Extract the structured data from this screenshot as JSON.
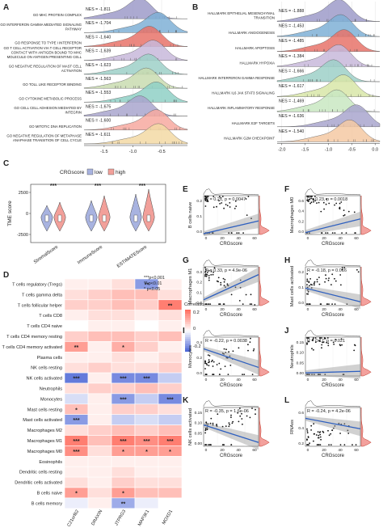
{
  "panel_letters": {
    "A": "A",
    "B": "B",
    "C": "C",
    "D": "D",
    "E": "E",
    "F": "F",
    "G": "G",
    "H": "H",
    "I": "I",
    "J": "J",
    "K": "K",
    "L": "L"
  },
  "chart_data": [
    {
      "panel": "A",
      "type": "ridge",
      "terms": [
        "GO MHC PROTEIN COMPLEX",
        "GO INTERFERON GAMMA MEDIATED SIGNALING PATHWAY",
        "GO RESPONSE TO TYPE I INTERFERON",
        "GO T CELL ACTIVATION VIA T CELL RECEPTOR CONTACT WITH ANTIGEN BOUND TO MHC MOLECULE ON ANTIGEN PRESENTING CELL",
        "GO NEGATIVE REGULATION OF MAST CELL ACTIVATION",
        "GO TOLL LIKE RECEPTOR BINDING",
        "GO CYTOKINE METABOLIC PROCESS",
        "GO CELL CELL ADHESION MEDIATED BY INTEGRIN",
        "GO MITOTIC DNA REPLICATION",
        "GO NEGATIVE REGULATION OF METAPHASE ANAPHASE TRANSITION OF CELL CYCLE"
      ],
      "nes_labels": [
        "NES = -1.811",
        "NES = -1.704",
        "NES = -1.640",
        "NES = -1.639",
        "NES = -1.623",
        "NES = -1.563",
        "NES = -1.553",
        "NES = -1.675",
        "NES = -1.600",
        "NES = -1.611"
      ],
      "x_ticks": [
        "-1.5",
        "-1.0",
        "-0.5"
      ],
      "colors": [
        "#9e9bc9",
        "#7fb0d6",
        "#e8736a",
        "#c8b8db",
        "#9dd0c8",
        "#c9dcb0",
        "#8fd0c6",
        "#a9a6ce",
        "#f7a9a0",
        "#f3d9a4"
      ]
    },
    {
      "panel": "B",
      "type": "ridge",
      "terms": [
        "HALLMARK EPITHELIAL MESENCHYMAL TRANSITION",
        "HALLMARK ANGIOGENESIS",
        "HALLMARK APOPTOSIS",
        "HALLMARK HYPOXIA",
        "HALLMARK INTERFERON GAMMA RESPONSE",
        "HALLMARK IL6 JAK STAT3 SIGNALING",
        "HALLMARK INFLAMMATORY RESPONSE",
        "HALLMARK E2F TARGETS",
        "HALLMARK G2M CHECKPOINT"
      ],
      "nes_labels": [
        "NES = -1.888",
        "NES = -1.453",
        "NES = -1.485",
        "NES = -1.384",
        "NES = -1.666",
        "NES = -1.617",
        "NES = -1.469",
        "NES = -1.636",
        "NES = -1.540"
      ],
      "x_ticks": [
        "-2.0",
        "-1.5",
        "-1.0",
        "-0.5",
        "0.0"
      ],
      "colors": [
        "#9e9bc9",
        "#7fb0d6",
        "#e8736a",
        "#c8b8db",
        "#9dd0c8",
        "#d8e6a8",
        "#c9e7c2",
        "#a9a6ce",
        "#f4c9a3"
      ]
    },
    {
      "panel": "C",
      "type": "violin",
      "title": "CRGscore",
      "legend": [
        "low",
        "high"
      ],
      "ylabel": "TME score",
      "y_ticks": [
        "2500",
        "0",
        "-2500"
      ],
      "categories": [
        "StromalScore",
        "ImmuneScore",
        "ESTIMATEScore"
      ],
      "significance": [
        "***",
        "***",
        "***"
      ],
      "colors": {
        "low": "#a8b3e0",
        "high": "#f2a09a"
      }
    },
    {
      "panel": "D",
      "type": "heatmap",
      "rows": [
        "T cells regulatory (Tregs)",
        "T cells gamma delta",
        "T cells follicular helper",
        "T cells CD8",
        "T cells CD4 naive",
        "T cells CD4 memory resting",
        "T cells CD4 memory activated",
        "Plasma cells",
        "NK cells resting",
        "NK cells activated",
        "Neutrophils",
        "Monocytes",
        "Mast cells resting",
        "Mast cells activated",
        "Macrophages M2",
        "Macrophages M1",
        "Macrophages M0",
        "Eosinophils",
        "Dendritic cells resting",
        "Dendritic cells activated",
        "B cells naive",
        "B cells memory"
      ],
      "columns": [
        "C21orf62",
        "DRAXIN",
        "JTPRG3",
        "MAP3K1",
        "MOXD1"
      ],
      "values": [
        [
          0.05,
          0.05,
          0.1,
          -0.3,
          0.05
        ],
        [
          0.1,
          0.15,
          0.2,
          0.2,
          0.1
        ],
        [
          0.15,
          0.15,
          0.2,
          0.15,
          0.4
        ],
        [
          0.05,
          0.1,
          0.1,
          0.05,
          0.1
        ],
        [
          0.0,
          0.05,
          0.05,
          0.0,
          0.05
        ],
        [
          0.15,
          0.2,
          0.2,
          0.15,
          0.2
        ],
        [
          0.3,
          0.05,
          0.25,
          0.15,
          0.05
        ],
        [
          0.05,
          0.05,
          0.1,
          0.05,
          0.1
        ],
        [
          0.1,
          0.15,
          0.1,
          0.1,
          0.15
        ],
        [
          -0.4,
          0.05,
          -0.35,
          -0.35,
          -0.15
        ],
        [
          0.1,
          0.15,
          0.15,
          0.2,
          0.15
        ],
        [
          -0.1,
          0.05,
          -0.3,
          -0.15,
          -0.35
        ],
        [
          0.2,
          0.05,
          0.15,
          0.15,
          0.1
        ],
        [
          -0.3,
          0.05,
          -0.15,
          -0.1,
          -0.15
        ],
        [
          0.1,
          0.15,
          0.2,
          0.15,
          0.2
        ],
        [
          0.4,
          0.2,
          0.4,
          0.35,
          0.4
        ],
        [
          0.35,
          0.1,
          0.3,
          0.3,
          0.3
        ],
        [
          0.05,
          0.05,
          0.05,
          0.05,
          0.05
        ],
        [
          0.05,
          0.05,
          0.1,
          0.05,
          0.05
        ],
        [
          0.1,
          0.05,
          0.15,
          0.1,
          0.1
        ],
        [
          0.3,
          0.1,
          0.3,
          0.2,
          0.2
        ],
        [
          -0.05,
          0.05,
          -0.25,
          -0.05,
          0.0
        ]
      ],
      "stars": [
        [
          "",
          "",
          "",
          "**",
          ""
        ],
        [
          "",
          "",
          "",
          "",
          ""
        ],
        [
          "",
          "",
          "",
          "",
          "**"
        ],
        [
          "",
          "",
          "",
          "",
          ""
        ],
        [
          "",
          "",
          "",
          "",
          ""
        ],
        [
          "",
          "",
          "",
          "",
          ""
        ],
        [
          "**",
          "",
          "*",
          "",
          ""
        ],
        [
          "",
          "",
          "",
          "",
          ""
        ],
        [
          "",
          "",
          "",
          "",
          ""
        ],
        [
          "***",
          "",
          "***",
          "***",
          ""
        ],
        [
          "",
          "",
          "",
          "",
          ""
        ],
        [
          "",
          "",
          "***",
          "",
          "***"
        ],
        [
          "*",
          "",
          "",
          "",
          ""
        ],
        [
          "***",
          "",
          "",
          "",
          ""
        ],
        [
          "",
          "",
          "",
          "",
          ""
        ],
        [
          "***",
          "",
          "***",
          "***",
          "***"
        ],
        [
          "***",
          "",
          "*",
          "*",
          "*"
        ],
        [
          "",
          "",
          "",
          "",
          ""
        ],
        [
          "",
          "",
          "",
          "",
          ""
        ],
        [
          "",
          "",
          "",
          "",
          ""
        ],
        [
          "*",
          "",
          "*",
          "",
          ""
        ],
        [
          "",
          "",
          "**",
          "",
          ""
        ]
      ],
      "legend_title": "Correlation",
      "legend_ticks": [
        "0.2",
        "0",
        "-0.2"
      ],
      "sig_legend": [
        "***p<0.001",
        "** p<0.01",
        "* p<0.05"
      ]
    },
    {
      "panel": "E",
      "type": "scatter",
      "xlabel": "CRGscore",
      "ylabel": "B cells naive",
      "stat": "R = 0.21, p = 0.0047",
      "x_ticks": [
        "0",
        "20",
        "40",
        "60"
      ],
      "y_ticks": [
        "0.2",
        "0.1",
        "0.0"
      ],
      "line": [
        0.02,
        0.35
      ]
    },
    {
      "panel": "F",
      "type": "scatter",
      "xlabel": "CRGscore",
      "ylabel": "Macrophages M0",
      "stat": "R = 0.23, p = 0.0018",
      "x_ticks": [
        "0",
        "20",
        "40",
        "60"
      ],
      "y_ticks": [
        "0.6",
        "0.4",
        "0.2",
        "0.0"
      ],
      "line": [
        0.05,
        0.4
      ]
    },
    {
      "panel": "G",
      "type": "scatter",
      "xlabel": "CRGscore",
      "ylabel": "Macrophages M1",
      "stat": "R = 0.33, p = 4.9e-06",
      "x_ticks": [
        "0",
        "20",
        "40",
        "60"
      ],
      "y_ticks": [
        "0.3",
        "0.2",
        "0.1",
        "0.0"
      ],
      "line": [
        0.15,
        0.8
      ]
    },
    {
      "panel": "H",
      "type": "scatter",
      "xlabel": "CRGscore",
      "ylabel": "Mast cells activated",
      "stat": "R = -0.18, p = 0.016",
      "x_ticks": [
        "0",
        "20",
        "40",
        "60"
      ],
      "y_ticks": [
        "0.2",
        "0.1",
        "0.0"
      ],
      "line": [
        0.45,
        0.1
      ]
    },
    {
      "panel": "I",
      "type": "scatter",
      "xlabel": "CRGscore",
      "ylabel": "Monocytes",
      "stat": "R = -0.22, p = 0.0038",
      "x_ticks": [
        "0",
        "20",
        "40",
        "60"
      ],
      "y_ticks": [
        "0.4",
        "0.2",
        "0.0"
      ],
      "line": [
        0.7,
        0.22
      ]
    },
    {
      "panel": "J",
      "type": "scatter",
      "xlabel": "CRGscore",
      "ylabel": "Neutrophils",
      "stat": "R = 0.17, p = 0.021",
      "x_ticks": [
        "0",
        "20",
        "40",
        "60"
      ],
      "y_ticks": [
        "0.15",
        "0.10",
        "0.05",
        "0.00"
      ],
      "line": [
        0.08,
        0.12
      ]
    },
    {
      "panel": "K",
      "type": "scatter",
      "xlabel": "CRGscore",
      "ylabel": "NK cells activated",
      "stat": "R = -0.35, p = 1.6e-06",
      "x_ticks": [
        "0",
        "20",
        "40",
        "60"
      ],
      "y_ticks": [
        "0.15",
        "0.10",
        "0.05",
        "0.00"
      ],
      "line": [
        0.55,
        0.1
      ]
    },
    {
      "panel": "L",
      "type": "scatter",
      "xlabel": "CRGscore",
      "ylabel": "RNAss",
      "stat": "R = -0.24, p = 4.2e-06",
      "x_ticks": [
        "0",
        "20",
        "40",
        "60"
      ],
      "y_ticks": [
        "0.6",
        "0.4",
        "0.2"
      ],
      "line": [
        0.72,
        0.45
      ]
    }
  ]
}
